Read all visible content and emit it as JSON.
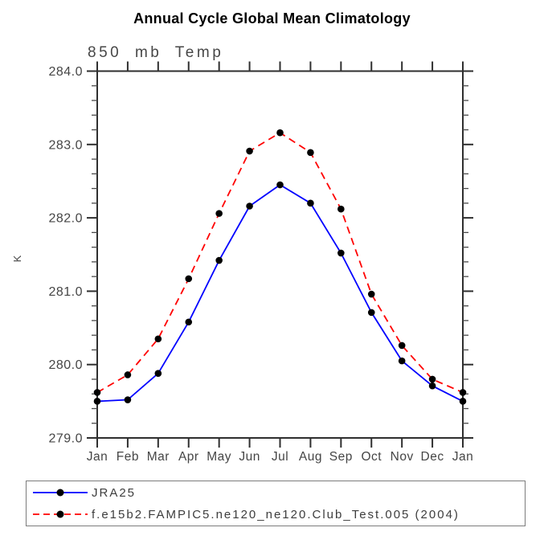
{
  "title": "Annual Cycle Global Mean Climatology",
  "subtitle": "850 mb Temp",
  "ylabel": "K",
  "colors": {
    "obs_line": "#0000ff",
    "model_line": "#ff0000",
    "marker": "#000000",
    "axis": "#2f2f2f",
    "label_text": "#454545"
  },
  "chart_data": {
    "type": "line",
    "title": "Annual Cycle Global Mean Climatology",
    "subtitle": "850 mb Temp",
    "xlabel": "",
    "ylabel": "K",
    "categories": [
      "Jan",
      "Feb",
      "Mar",
      "Apr",
      "May",
      "Jun",
      "Jul",
      "Aug",
      "Sep",
      "Oct",
      "Nov",
      "Dec",
      "Jan"
    ],
    "series": [
      {
        "name": "JRA25",
        "color": "#0000ff",
        "line_style": "solid",
        "marker": "filled-black-circle",
        "values": [
          279.5,
          279.52,
          279.88,
          280.58,
          281.42,
          282.16,
          282.45,
          282.2,
          281.52,
          280.71,
          280.05,
          279.71,
          279.5
        ]
      },
      {
        "name": "f.e15b2.FAMPIC5.ne120_ne120.Club_Test.005 (2004)",
        "color": "#ff0000",
        "line_style": "dashed",
        "marker": "filled-black-circle",
        "values": [
          279.62,
          279.86,
          280.35,
          281.17,
          282.06,
          282.91,
          283.16,
          282.89,
          282.12,
          280.96,
          280.26,
          279.8,
          279.62
        ]
      }
    ],
    "ylim": [
      279.0,
      284.0
    ],
    "yticks": [
      "279.0",
      "280.0",
      "281.0",
      "282.0",
      "283.0",
      "284.0"
    ],
    "ytick_major_step": 1.0,
    "ytick_minor_step": 0.2,
    "grid": false,
    "tick_direction": "outward",
    "legend_position": "bottom-left-box"
  }
}
